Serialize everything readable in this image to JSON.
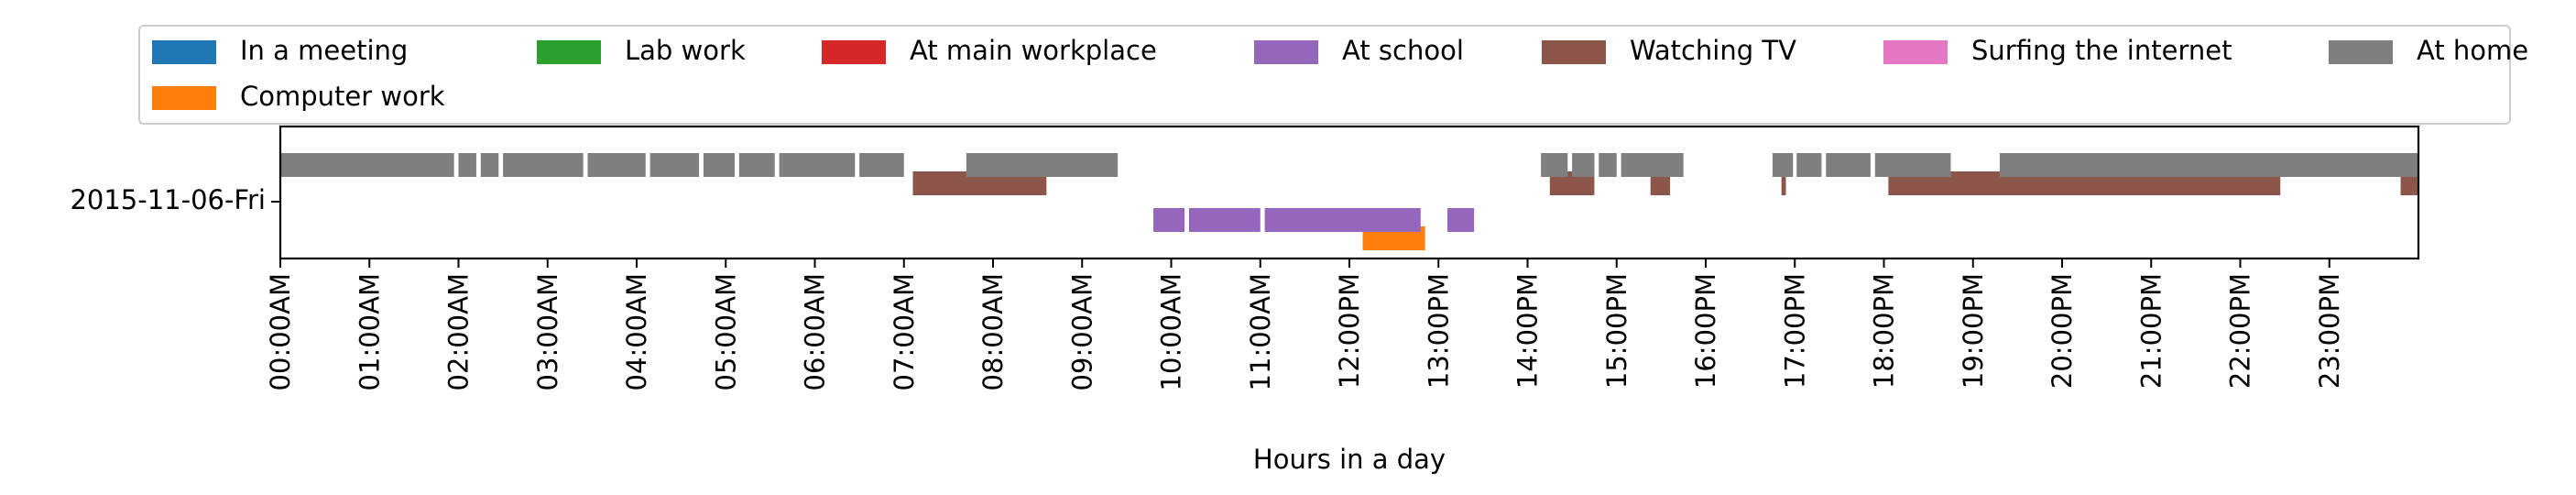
{
  "chart_data": {
    "type": "timeline",
    "title": "",
    "xlabel": "Hours in a day",
    "ylabel": "",
    "xlim": [
      0,
      24
    ],
    "y_category": "2015-11-06-Fri",
    "x_tick_labels": [
      "00:00AM",
      "01:00AM",
      "02:00AM",
      "03:00AM",
      "04:00AM",
      "05:00AM",
      "06:00AM",
      "07:00AM",
      "08:00AM",
      "09:00AM",
      "10:00AM",
      "11:00AM",
      "12:00PM",
      "13:00PM",
      "14:00PM",
      "15:00PM",
      "16:00PM",
      "17:00PM",
      "18:00PM",
      "19:00PM",
      "20:00PM",
      "21:00PM",
      "22:00PM",
      "23:00PM"
    ],
    "legend_position": "top",
    "series": [
      {
        "name": "In a meeting",
        "color": "#1f77b4",
        "level": 0,
        "intervals": []
      },
      {
        "name": "Computer work",
        "color": "#ff7f0e",
        "level": -1,
        "intervals": [
          [
            12.15,
            12.85
          ]
        ]
      },
      {
        "name": "Lab work",
        "color": "#2ca02c",
        "level": 0,
        "intervals": []
      },
      {
        "name": "At main workplace",
        "color": "#d62728",
        "level": 0,
        "intervals": []
      },
      {
        "name": "At school",
        "color": "#9467bd",
        "level": -0.5,
        "intervals": [
          [
            9.8,
            10.15
          ],
          [
            10.2,
            11.0
          ],
          [
            11.05,
            12.8
          ],
          [
            13.1,
            13.4
          ]
        ]
      },
      {
        "name": "Watching TV",
        "color": "#8c564b",
        "level": 0.5,
        "intervals": [
          [
            7.1,
            8.6
          ],
          [
            14.25,
            14.75
          ],
          [
            15.38,
            15.6
          ],
          [
            16.85,
            16.9
          ],
          [
            18.05,
            22.45
          ],
          [
            23.8,
            24.0
          ]
        ]
      },
      {
        "name": "Surfing the internet",
        "color": "#e377c2",
        "level": 0,
        "intervals": []
      },
      {
        "name": "At home",
        "color": "#7f7f7f",
        "level": 1.0,
        "intervals": [
          [
            0.0,
            1.95
          ],
          [
            2.0,
            2.2
          ],
          [
            2.25,
            2.45
          ],
          [
            2.5,
            3.4
          ],
          [
            3.45,
            4.1
          ],
          [
            4.15,
            4.7
          ],
          [
            4.75,
            5.1
          ],
          [
            5.15,
            5.55
          ],
          [
            5.6,
            6.45
          ],
          [
            6.5,
            7.0
          ],
          [
            7.7,
            9.4
          ],
          [
            14.15,
            14.45
          ],
          [
            14.5,
            14.75
          ],
          [
            14.8,
            15.0
          ],
          [
            15.05,
            15.75
          ],
          [
            16.75,
            16.98
          ],
          [
            17.02,
            17.3
          ],
          [
            17.35,
            17.85
          ],
          [
            17.9,
            18.75
          ],
          [
            19.3,
            24.0
          ]
        ]
      }
    ]
  }
}
